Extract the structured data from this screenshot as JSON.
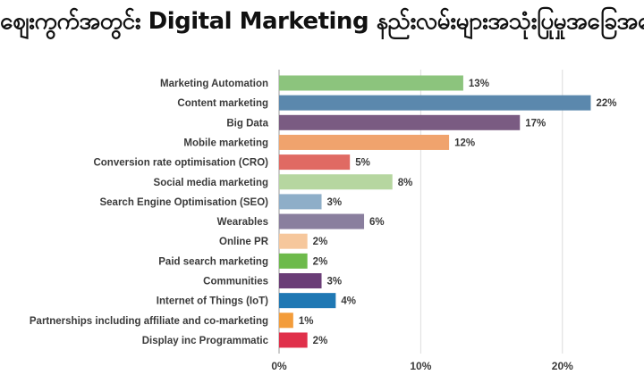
{
  "title": "ဈေးကွက်အတွင်း Digital Marketing နည်းလမ်းများအသုံးပြုမှုအခြေအနေ",
  "chart_data": {
    "type": "bar",
    "orientation": "horizontal",
    "categories": [
      "Marketing Automation",
      "Content marketing",
      "Big Data",
      "Mobile marketing",
      "Conversion rate optimisation (CRO)",
      "Social media marketing",
      "Search Engine Optimisation (SEO)",
      "Wearables",
      "Online PR",
      "Paid search marketing",
      "Communities",
      "Internet of Things (IoT)",
      "Partnerships including affiliate and co-marketing",
      "Display inc Programmatic"
    ],
    "values": [
      13,
      22,
      17,
      12,
      5,
      8,
      3,
      6,
      2,
      2,
      3,
      4,
      1,
      2
    ],
    "value_labels": [
      "13%",
      "22%",
      "17%",
      "12%",
      "5%",
      "8%",
      "3%",
      "6%",
      "2%",
      "2%",
      "3%",
      "4%",
      "1%",
      "2%"
    ],
    "colors": [
      "#8cc47d",
      "#5b88ad",
      "#7a5b82",
      "#f0a36d",
      "#e06a63",
      "#b6d6a0",
      "#8eaec8",
      "#8a7f9e",
      "#f6c79c",
      "#6dba4b",
      "#6a3d77",
      "#1f78b4",
      "#f39c3a",
      "#e0304a"
    ],
    "xlim": [
      0,
      25
    ],
    "xticks": [
      0,
      10,
      20
    ],
    "xtick_labels": [
      "0%",
      "10%",
      "20%"
    ],
    "grid": true,
    "xlabel": "",
    "ylabel": ""
  }
}
